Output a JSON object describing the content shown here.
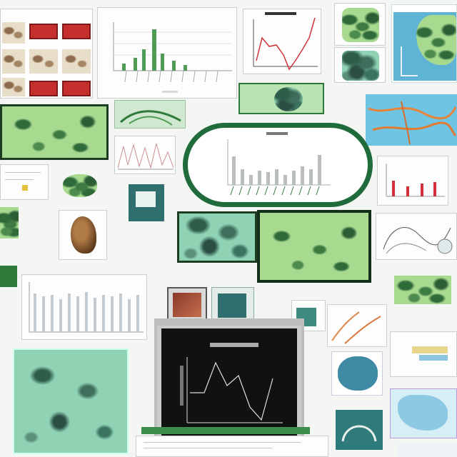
{
  "colors": {
    "accent_green": "#2f7a3a",
    "sky_blue": "#5fb4d6",
    "chart_red": "#d0313a",
    "screen_black": "#111111"
  },
  "icons": [
    "laptop-icon",
    "monitor-icon"
  ],
  "illegible_text_present": true
}
